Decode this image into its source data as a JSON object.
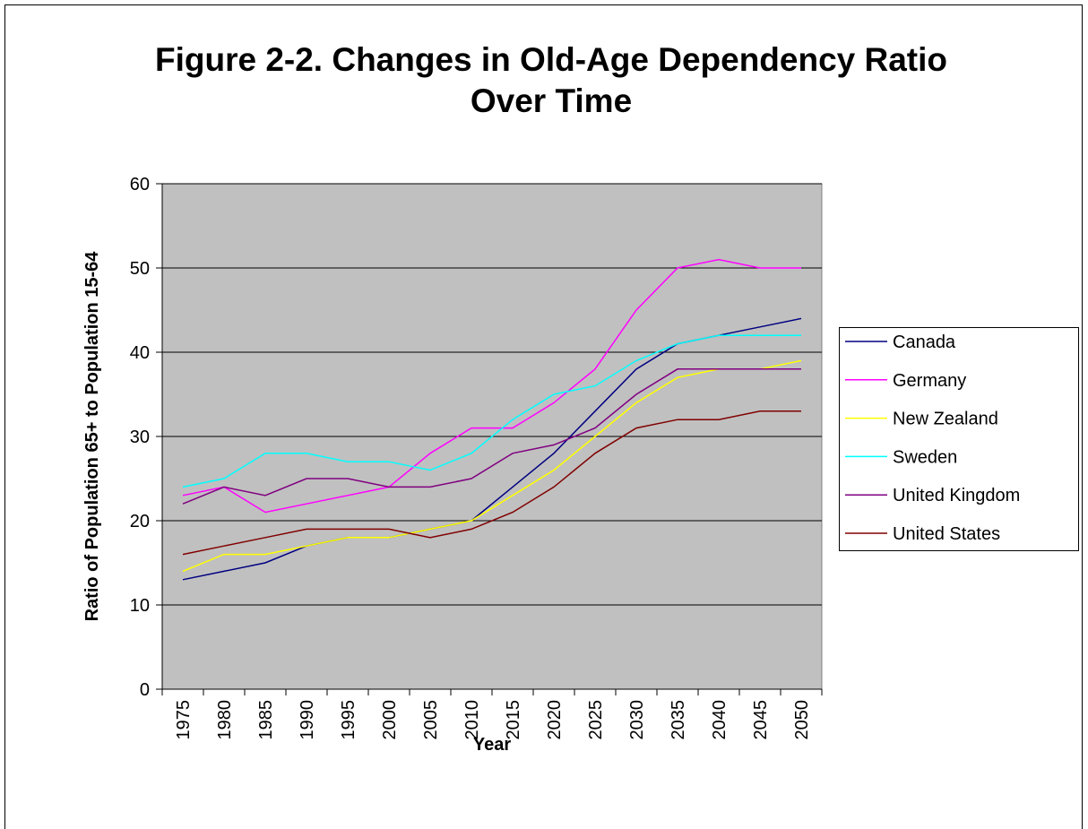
{
  "chart_data": {
    "type": "line",
    "title": "Figure 2-2. Changes in Old-Age Dependency Ratio Over Time",
    "x_label": "Year",
    "y_label": "Ratio of Population 65+ to Population 15-64",
    "categories": [
      "1975",
      "1980",
      "1985",
      "1990",
      "1995",
      "2000",
      "2005",
      "2010",
      "2015",
      "2020",
      "2025",
      "2030",
      "2035",
      "2040",
      "2045",
      "2050"
    ],
    "series": [
      {
        "name": "Canada",
        "color": "#000080",
        "values": [
          13,
          14,
          15,
          17,
          18,
          18,
          19,
          20,
          24,
          28,
          33,
          38,
          41,
          42,
          43,
          44
        ]
      },
      {
        "name": "Germany",
        "color": "#ff00ff",
        "values": [
          23,
          24,
          21,
          22,
          23,
          24,
          28,
          31,
          31,
          34,
          38,
          45,
          50,
          51,
          50,
          50
        ]
      },
      {
        "name": "New Zealand",
        "color": "#ffff00",
        "values": [
          14,
          16,
          16,
          17,
          18,
          18,
          19,
          20,
          23,
          26,
          30,
          34,
          37,
          38,
          38,
          39
        ]
      },
      {
        "name": "Sweden",
        "color": "#00ffff",
        "values": [
          24,
          25,
          28,
          28,
          27,
          27,
          26,
          28,
          32,
          35,
          36,
          39,
          41,
          42,
          42,
          42
        ]
      },
      {
        "name": "United Kingdom",
        "color": "#800080",
        "values": [
          22,
          24,
          23,
          25,
          25,
          24,
          24,
          25,
          28,
          29,
          31,
          35,
          38,
          38,
          38,
          38
        ]
      },
      {
        "name": "United States",
        "color": "#800000",
        "values": [
          16,
          17,
          18,
          19,
          19,
          19,
          18,
          19,
          21,
          24,
          28,
          31,
          32,
          32,
          33,
          33
        ]
      }
    ],
    "ylim": [
      0,
      60
    ],
    "yticks": [
      0,
      10,
      20,
      30,
      40,
      50,
      60
    ],
    "grid": true,
    "legend": "right"
  }
}
